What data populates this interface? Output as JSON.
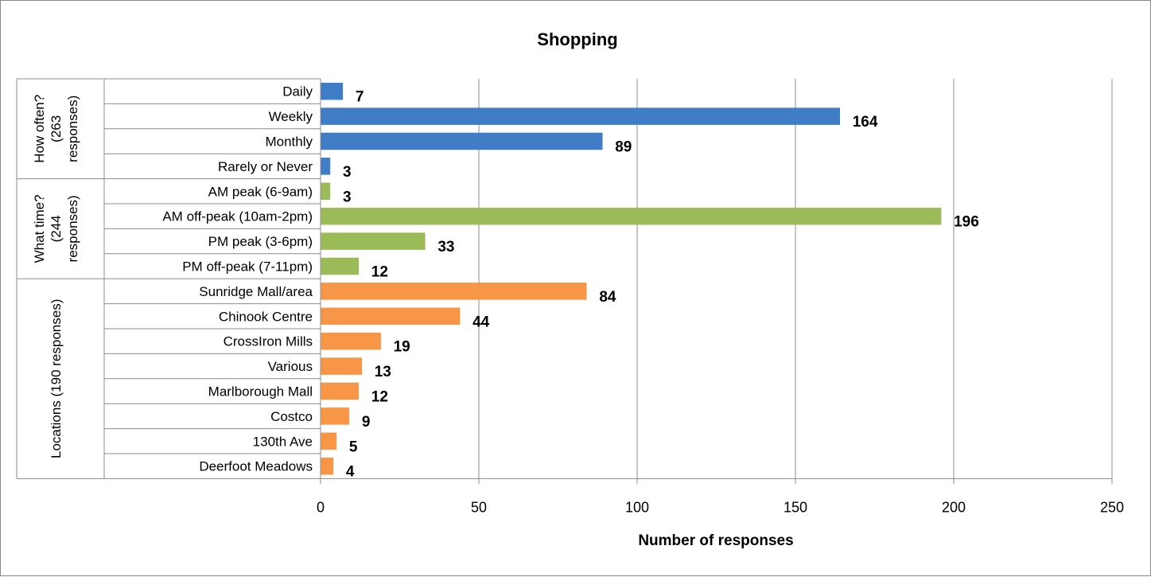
{
  "chart_data": {
    "type": "bar",
    "orientation": "horizontal",
    "title": "Shopping",
    "xlabel": "Number of responses",
    "ylabel": "",
    "xlim": [
      0,
      250
    ],
    "xticks": [
      "0",
      "50",
      "100",
      "150",
      "200",
      "250"
    ],
    "grid": true,
    "legend": "none",
    "data_labels": true,
    "groups": [
      {
        "label": "How often? (263 responses)",
        "label_lines": [
          "How often?",
          "(263",
          "responses)"
        ],
        "color": "#3f7dc6",
        "categories": [
          "Daily",
          "Weekly",
          "Monthly",
          "Rarely or Never"
        ],
        "values": [
          7,
          164,
          89,
          3
        ]
      },
      {
        "label": "What time? (244 responses)",
        "label_lines": [
          "What time?",
          "(244",
          "responses)"
        ],
        "color": "#9bbb59",
        "categories": [
          "AM peak (6-9am)",
          "AM off-peak (10am-2pm)",
          "PM peak (3-6pm)",
          "PM off-peak (7-11pm)"
        ],
        "values": [
          3,
          196,
          33,
          12
        ]
      },
      {
        "label": "Locations (190 responses)",
        "label_lines": [
          "Locations (190 responses)"
        ],
        "color": "#f79646",
        "categories": [
          "Sunridge Mall/area",
          "Chinook Centre",
          "CrossIron Mills",
          "Various",
          "Marlborough Mall",
          "Costco",
          "130th Ave",
          "Deerfoot Meadows"
        ],
        "values": [
          84,
          44,
          19,
          13,
          12,
          9,
          5,
          4
        ]
      }
    ]
  }
}
